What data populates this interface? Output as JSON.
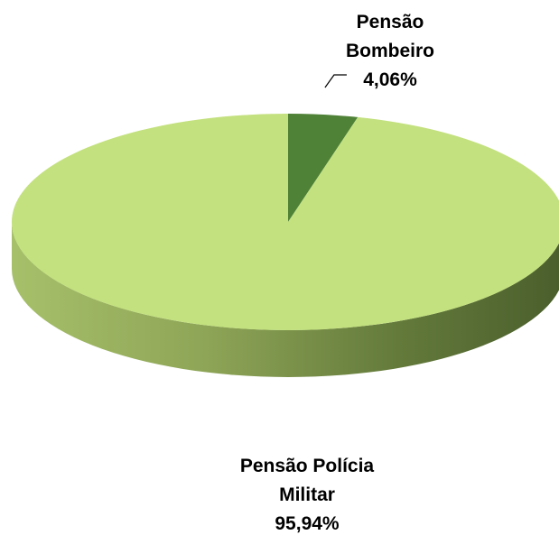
{
  "chart_data": {
    "type": "pie",
    "style": "3d",
    "labels": [
      "Pensão Bombeiro",
      "Pensão Polícia Militar"
    ],
    "values": [
      4.06,
      95.94
    ],
    "value_labels": [
      "4,06%",
      "95,94%"
    ],
    "colors": [
      "#4f8136",
      "#c3e17e"
    ],
    "side_colors": [
      "#3f6a2b",
      "#9bb35e"
    ],
    "data_labels": [
      {
        "lines": [
          "Pensão",
          "Bombeiro",
          "4,06%"
        ]
      },
      {
        "lines": [
          "Pensão Polícia",
          "Militar",
          "95,94%"
        ]
      }
    ],
    "legend": "none"
  }
}
